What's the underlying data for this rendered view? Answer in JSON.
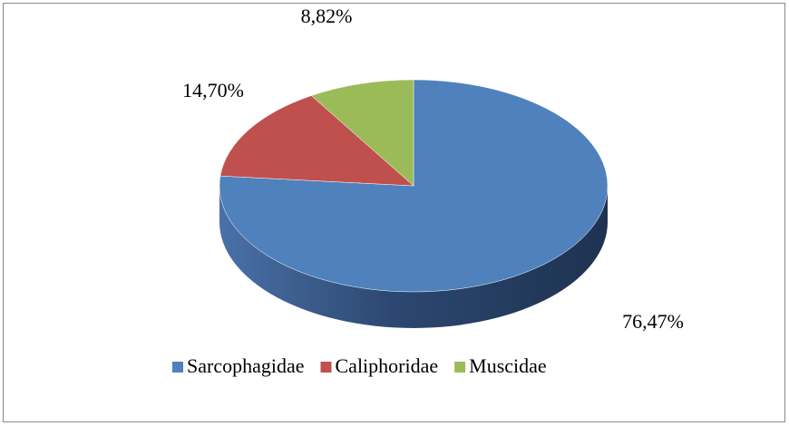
{
  "chart_data": {
    "type": "pie",
    "categories": [
      "Sarcophagidae",
      "Caliphoridae",
      "Muscidae"
    ],
    "values": [
      76.47,
      14.7,
      8.82
    ],
    "value_labels": [
      "76,47%",
      "14,70%",
      "8,82%"
    ],
    "colors": [
      "#4f81bd",
      "#c0504d",
      "#9bbb59"
    ],
    "legend": "bottom"
  }
}
